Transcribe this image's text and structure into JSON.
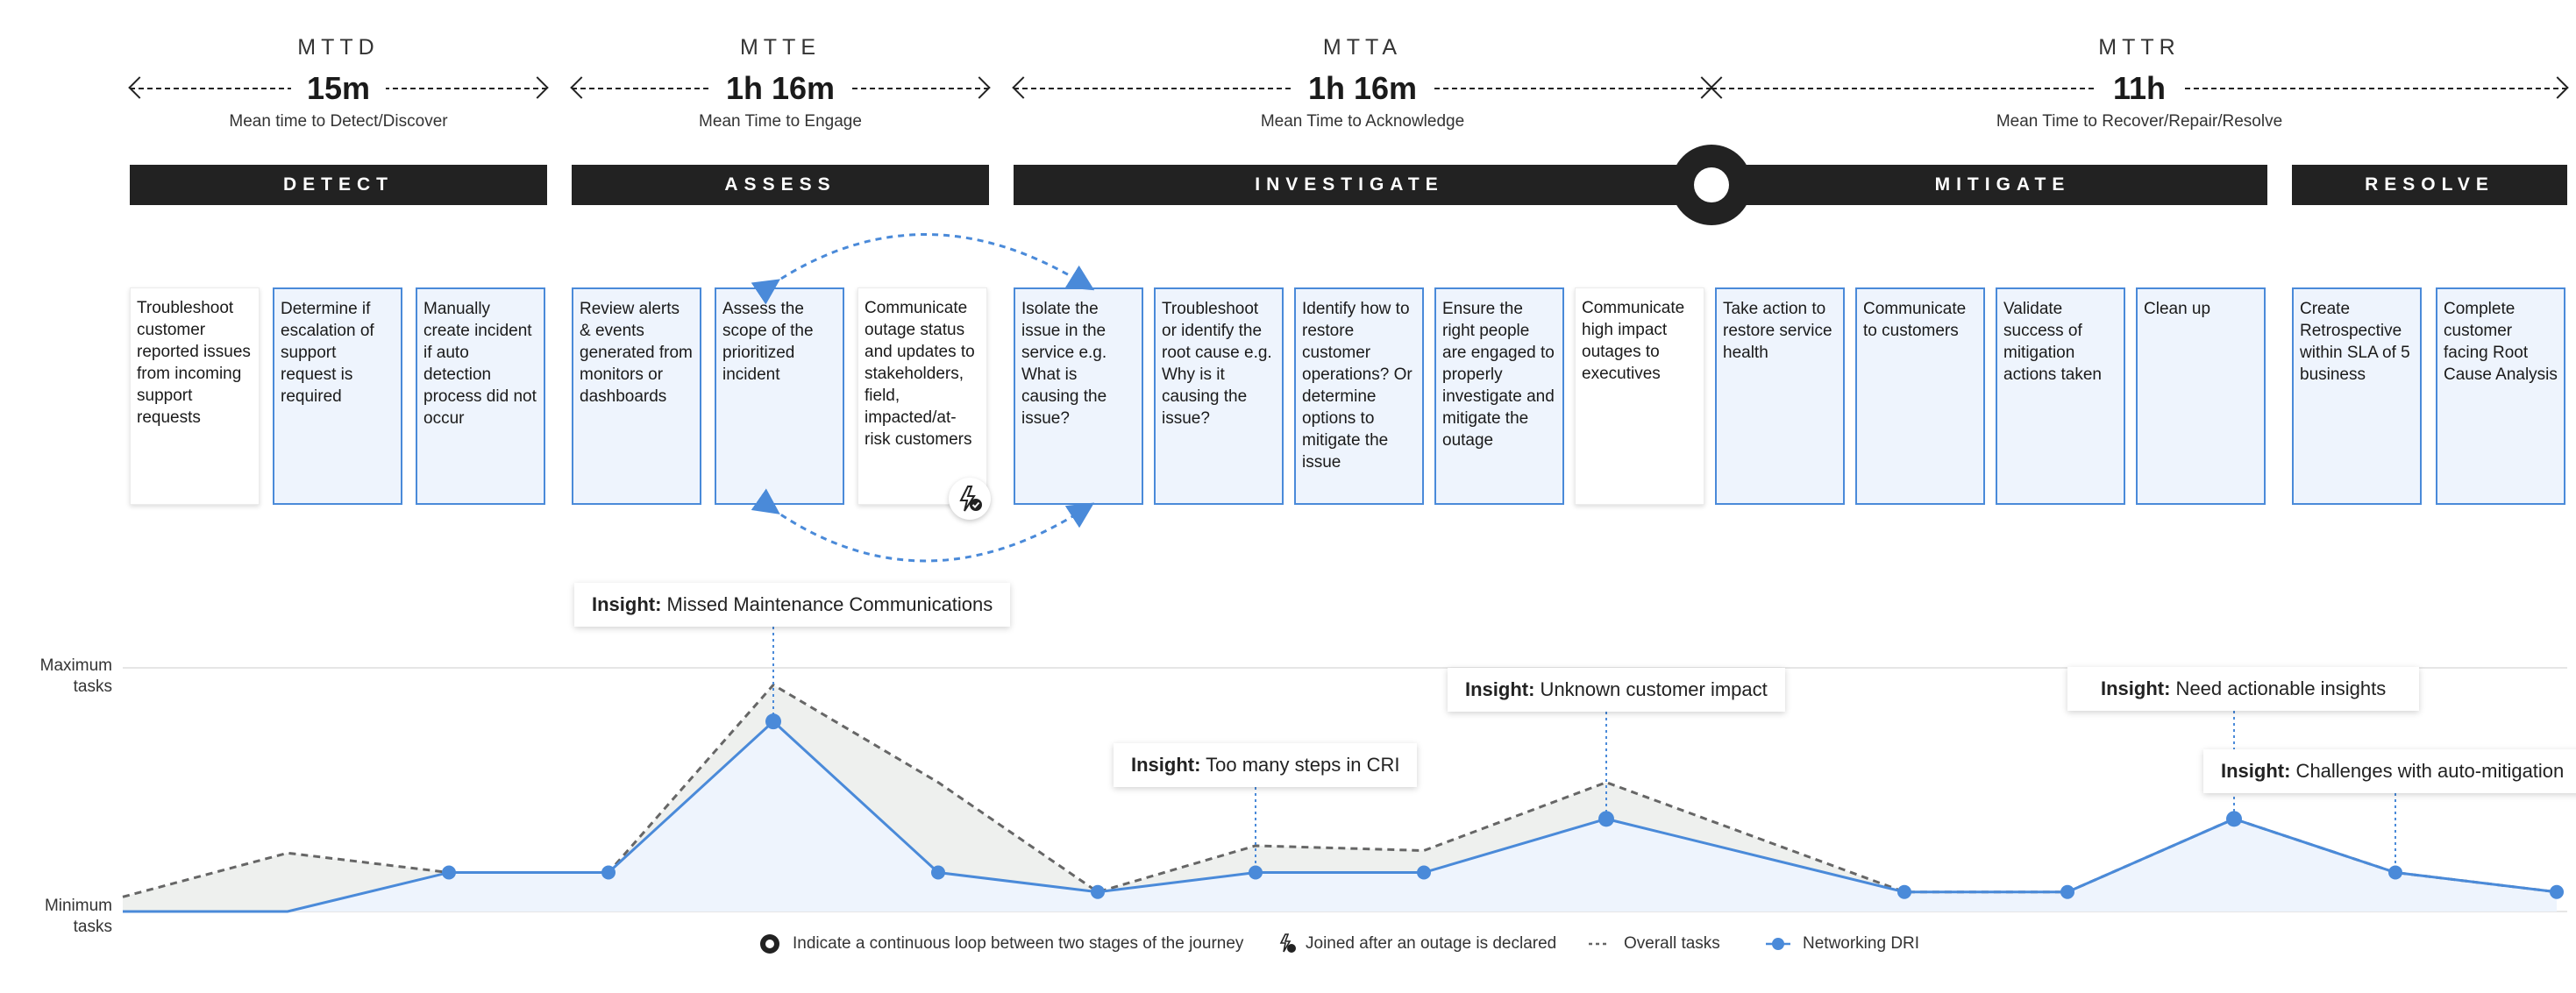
{
  "metrics": [
    {
      "abbr": "MTTD",
      "value": "15m",
      "desc": "Mean time to Detect/Discover"
    },
    {
      "abbr": "MTTE",
      "value": "1h 16m",
      "desc": "Mean Time to Engage"
    },
    {
      "abbr": "MTTA",
      "value": "1h 16m",
      "desc": "Mean Time to Acknowledge"
    },
    {
      "abbr": "MTTR",
      "value": "11h",
      "desc": "Mean Time to Recover/Repair/Resolve"
    }
  ],
  "stages": [
    "DETECT",
    "ASSESS",
    "INVESTIGATE",
    "MITIGATE",
    "RESOLVE"
  ],
  "cards": [
    {
      "text": "Troubleshoot customer reported issues from incoming support requests",
      "highlighted": false
    },
    {
      "text": "Determine if escalation of support request is required",
      "highlighted": true
    },
    {
      "text": "Manually create incident if auto detection process did not occur",
      "highlighted": true
    },
    {
      "text": "Review alerts & events generated from monitors or dashboards",
      "highlighted": true
    },
    {
      "text": "Assess the scope of the prioritized incident",
      "highlighted": true
    },
    {
      "text": "Communicate outage status and updates to stakeholders, field, impacted/at-risk customers",
      "highlighted": false
    },
    {
      "text": "Isolate the issue in the service e.g. What is causing the issue?",
      "highlighted": true
    },
    {
      "text": "Troubleshoot or identify the root cause e.g. Why is it causing the issue?",
      "highlighted": true
    },
    {
      "text": "Identify how to restore customer operations? Or determine options to mitigate the issue",
      "highlighted": true
    },
    {
      "text": "Ensure the right people are engaged to properly investigate and mitigate the outage",
      "highlighted": true
    },
    {
      "text": "Communicate high impact outages to executives",
      "highlighted": false
    },
    {
      "text": "Take action to restore service health",
      "highlighted": true
    },
    {
      "text": "Communicate to customers",
      "highlighted": true
    },
    {
      "text": "Validate success of mitigation actions taken",
      "highlighted": true
    },
    {
      "text": "Clean up",
      "highlighted": true
    },
    {
      "text": "Create Retrospective within SLA of 5 business",
      "highlighted": true
    },
    {
      "text": "Complete customer facing Root Cause Analysis",
      "highlighted": true
    }
  ],
  "axis": {
    "max_label": "Maximum tasks",
    "min_label": "Minimum tasks"
  },
  "insights": [
    {
      "prefix": "Insight:",
      "text": " Missed Maintenance Communications"
    },
    {
      "prefix": "Insight:",
      "text": " Too many steps in CRI"
    },
    {
      "prefix": "Insight:",
      "text": " Unknown customer impact"
    },
    {
      "prefix": "Insight:",
      "text": " Need actionable insights"
    },
    {
      "prefix": "Insight:",
      "text": " Challenges with auto-mitigation"
    }
  ],
  "legend": {
    "loop": "Indicate a continuous loop between two stages of the journey",
    "joined": "Joined after an outage is declared",
    "overall": "Overall tasks",
    "dri": "Networking DRI"
  },
  "chart_data": {
    "type": "area",
    "y_scale": "0 = Minimum tasks, 1 = Maximum tasks",
    "series": [
      {
        "name": "Overall tasks",
        "style": "dashed",
        "color": "#666666",
        "values": [
          0.06,
          0.24,
          0.16,
          0.16,
          0.93,
          0.53,
          0.08,
          0.27,
          0.25,
          0.53,
          0.08,
          0.08,
          0.38,
          0.16,
          0.08
        ]
      },
      {
        "name": "Networking DRI",
        "style": "solid",
        "color": "#4a8ad9",
        "values": [
          0.0,
          0.0,
          0.16,
          0.16,
          0.78,
          0.16,
          0.08,
          0.16,
          0.16,
          0.38,
          0.08,
          0.08,
          0.38,
          0.16,
          0.08
        ]
      }
    ],
    "colors": {
      "accent": "#4a8ad9",
      "highlight_fill": "#eef4fd",
      "overall_fill": "#eef0ee",
      "dark": "#222222"
    }
  }
}
